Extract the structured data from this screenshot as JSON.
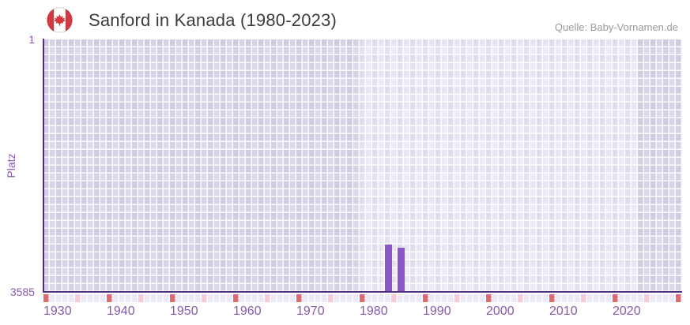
{
  "header": {
    "title": "Sanford in Kanada (1980-2023)",
    "source": "Quelle: Baby-Vornamen.de",
    "flag_icon": "canada-flag"
  },
  "chart_data": {
    "type": "bar",
    "title": "Sanford in Kanada (1980-2023)",
    "xlabel": "",
    "ylabel": "Platz",
    "grid": true,
    "legend": "none",
    "y_axis": {
      "top_tick": "1",
      "bottom_tick": "3585",
      "min": 1,
      "max": 3585,
      "inverted": true
    },
    "x_axis": {
      "min": 1930,
      "max": 2030,
      "labels": [
        "1930",
        "1940",
        "1950",
        "1960",
        "1970",
        "1980",
        "1990",
        "2000",
        "2010",
        "2020"
      ],
      "decade_tick_years": [
        1930,
        1940,
        1950,
        1960,
        1970,
        1980,
        1990,
        2000,
        2010,
        2020,
        2030
      ],
      "mid_tick_years": [
        1935,
        1945,
        1955,
        1965,
        1975,
        1985,
        1995,
        2005,
        2015,
        2025
      ]
    },
    "highlight_year_range": [
      1980,
      2023
    ],
    "series": [
      {
        "name": "Platz",
        "points": [
          {
            "year": 1984,
            "rank": 2913
          },
          {
            "year": 1986,
            "rank": 2958
          }
        ]
      }
    ],
    "colors": {
      "bar": "#8a56c9",
      "axis": "#512d82",
      "tick_label": "#8a58ae",
      "plot_bg": "#dbd5e8",
      "plot_bg_highlight": "#ece8f6",
      "tick_red": "#e16a72",
      "tick_pink": "#f2cdd7",
      "title_text": "#3c3c3c",
      "source_text": "#9a9a9a",
      "flag_red": "#d53840"
    }
  }
}
